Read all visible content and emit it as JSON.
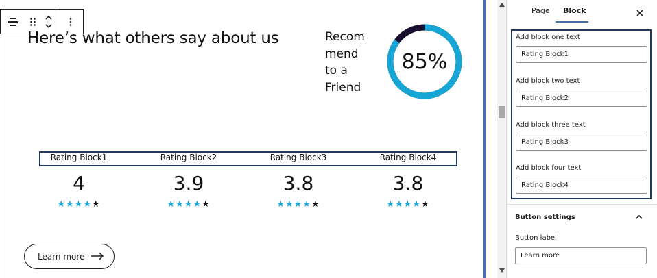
{
  "canvas": {
    "heading": "Here’s what others say about us",
    "recommend": {
      "lines": [
        "Recom",
        "mend",
        "to a",
        "Friend"
      ],
      "percent_label": "85%",
      "percent": 85,
      "ring_color": "#16a6d6",
      "track_color": "#1a0f2e"
    },
    "ratings": [
      {
        "label": "Rating Block1",
        "value": "4",
        "stars_on": 4,
        "stars_total": 5
      },
      {
        "label": "Rating Block2",
        "value": "3.9",
        "stars_on": 4,
        "stars_total": 5
      },
      {
        "label": "Rating Block3",
        "value": "3.8",
        "stars_on": 4,
        "stars_total": 5
      },
      {
        "label": "Rating Block4",
        "value": "3.8",
        "stars_on": 4,
        "stars_total": 5
      }
    ],
    "learn_more_label": "Learn more",
    "toolbar": {
      "align_icon": "align-icon",
      "drag_icon": "drag-handle-icon",
      "move_icon": "move-up-down-icon",
      "more_icon": "more-options-icon"
    }
  },
  "sidebar": {
    "tabs": [
      {
        "label": "Page",
        "active": false
      },
      {
        "label": "Block",
        "active": true
      }
    ],
    "fields": [
      {
        "label": "Add block one text",
        "value": "Rating Block1"
      },
      {
        "label": "Add block two text",
        "value": "Rating Block2"
      },
      {
        "label": "Add block three text",
        "value": "Rating Block3"
      },
      {
        "label": "Add block four text",
        "value": "Rating Block4"
      }
    ],
    "button_settings": {
      "title": "Button settings",
      "label_caption": "Button label",
      "label_value": "Learn more"
    }
  },
  "colors": {
    "accent": "#3b72b9",
    "selection_border": "#1f3a60",
    "star_active": "#16a6d6"
  }
}
